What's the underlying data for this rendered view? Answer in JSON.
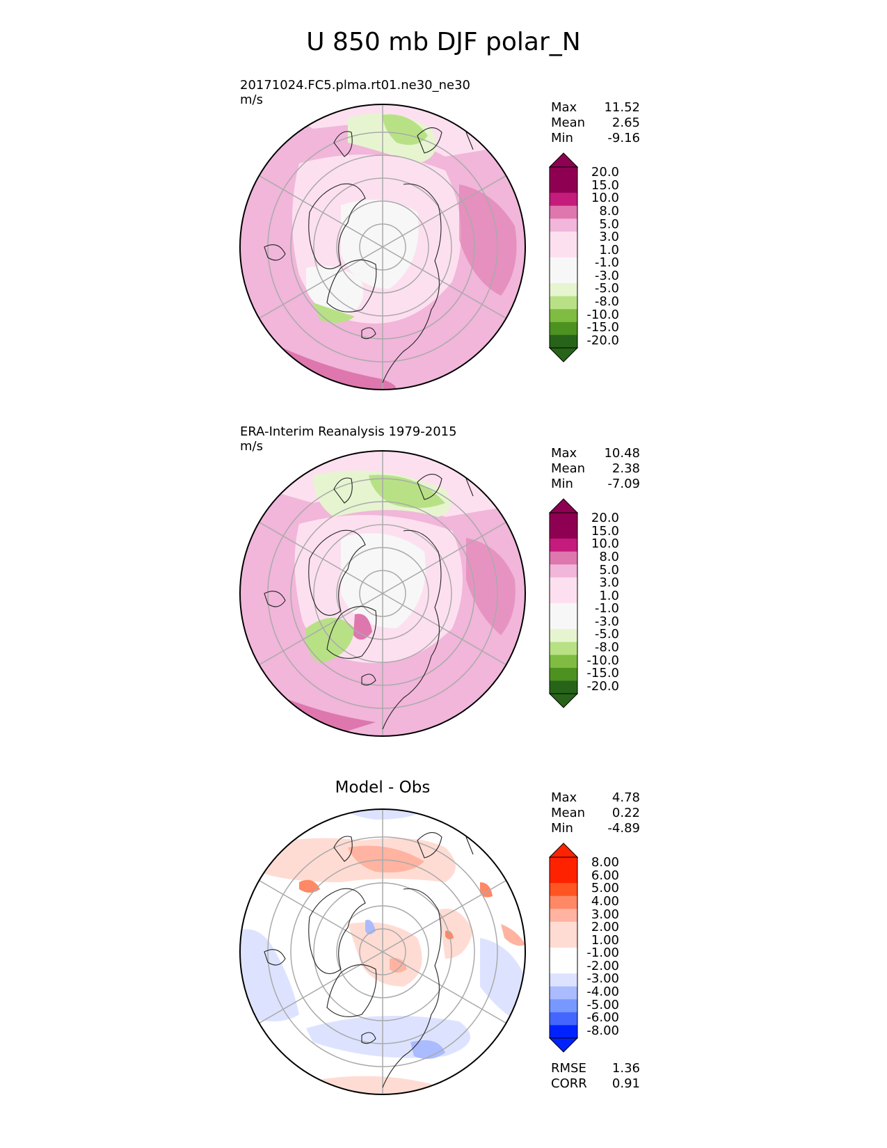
{
  "figure_title": "U 850 mb DJF polar_N",
  "colors": {
    "div_pink_green": [
      "#276419",
      "#4d9221",
      "#7fbc41",
      "#b8e186",
      "#e6f5d0",
      "#f7f7f7",
      "#fde0ef",
      "#f1b6da",
      "#de77ae",
      "#c51b7d",
      "#8e0152"
    ],
    "diff_blue_red": [
      "#0022ff",
      "#4466ff",
      "#7799ff",
      "#aabbff",
      "#dde3ff",
      "#ffffff",
      "#ffdcd3",
      "#ffb3a0",
      "#ff8866",
      "#ff5522",
      "#ff2200"
    ]
  },
  "panels": [
    {
      "title": "20171024.FC5.plma.rt01.ne30_ne30",
      "units": "m/s",
      "stats": {
        "max_label": "Max",
        "max": "11.52",
        "mean_label": "Mean",
        "mean": "2.65",
        "min_label": "Min",
        "min": "-9.16"
      },
      "colorbar_ticks": [
        "20.0",
        "15.0",
        "10.0",
        "8.0",
        "5.0",
        "3.0",
        "1.0",
        "-1.0",
        "-3.0",
        "-5.0",
        "-8.0",
        "-10.0",
        "-15.0",
        "-20.0"
      ]
    },
    {
      "title": "ERA-Interim Reanalysis 1979-2015",
      "units": "m/s",
      "stats": {
        "max_label": "Max",
        "max": "10.48",
        "mean_label": "Mean",
        "mean": "2.38",
        "min_label": "Min",
        "min": "-7.09"
      },
      "colorbar_ticks": [
        "20.0",
        "15.0",
        "10.0",
        "8.0",
        "5.0",
        "3.0",
        "1.0",
        "-1.0",
        "-3.0",
        "-5.0",
        "-8.0",
        "-10.0",
        "-15.0",
        "-20.0"
      ]
    },
    {
      "title": "Model - Obs",
      "units": "",
      "stats": {
        "max_label": "Max",
        "max": "4.78",
        "mean_label": "Mean",
        "mean": "0.22",
        "min_label": "Min",
        "min": "-4.89"
      },
      "colorbar_ticks": [
        "8.00",
        "6.00",
        "5.00",
        "4.00",
        "3.00",
        "2.00",
        "1.00",
        "-1.00",
        "-2.00",
        "-3.00",
        "-4.00",
        "-5.00",
        "-6.00",
        "-8.00"
      ]
    }
  ],
  "footer": {
    "rmse_label": "RMSE",
    "rmse": "1.36",
    "corr_label": "CORR",
    "corr": "0.91"
  }
}
